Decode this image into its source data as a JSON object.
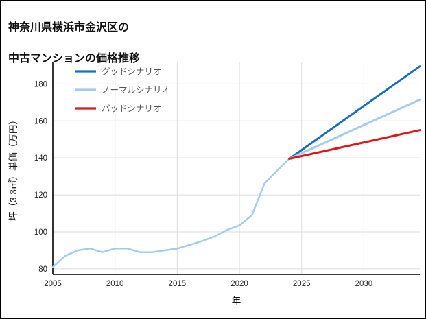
{
  "page": {
    "title_line1": "神奈川県横浜市金沢区の",
    "title_line2": "中古マンションの価格推移"
  },
  "chart_data": {
    "type": "line",
    "title": "神奈川県横浜市金沢区の中古マンションの価格推移",
    "xlabel": "年",
    "ylabel": "坪（3.3㎡）単価（万円）",
    "xlim": [
      2005,
      2034.5
    ],
    "ylim": [
      77,
      192
    ],
    "xticks": [
      2005,
      2010,
      2015,
      2020,
      2025,
      2030
    ],
    "yticks": [
      80,
      100,
      120,
      140,
      160,
      180
    ],
    "grid": true,
    "legend_position": "upper-left",
    "colors": {
      "grid": "#dcdcdc",
      "axis": "#000000",
      "good": "#1a6fc0",
      "normal": "#a4cbed",
      "bad": "#e01717",
      "history": "#a4cbed",
      "legend_text": "#555555",
      "tick_text": "#222222"
    },
    "series": [
      {
        "key": "history",
        "label": "",
        "color": "#a4cbed",
        "width": 2.5,
        "in_legend": false,
        "x": [
          2005,
          2006,
          2007,
          2008,
          2009,
          2010,
          2011,
          2012,
          2013,
          2014,
          2015,
          2016,
          2017,
          2018,
          2019,
          2020,
          2021,
          2022,
          2023,
          2024
        ],
        "y": [
          81,
          87,
          90,
          91,
          89,
          91,
          91,
          89,
          89,
          90,
          91,
          93,
          95,
          97.5,
          101,
          103.5,
          109,
          126,
          133,
          139.5
        ]
      },
      {
        "key": "good",
        "label": "グッドシナリオ",
        "color": "#1a6fc0",
        "width": 3,
        "in_legend": true,
        "x": [
          2024,
          2034.5
        ],
        "y": [
          139.5,
          189.5
        ]
      },
      {
        "key": "normal",
        "label": "ノーマルシナリオ",
        "color": "#a4cbed",
        "width": 3,
        "in_legend": true,
        "x": [
          2024,
          2034.5
        ],
        "y": [
          139.5,
          171.5
        ]
      },
      {
        "key": "bad",
        "label": "バッドシナリオ",
        "color": "#e01717",
        "width": 3,
        "in_legend": true,
        "x": [
          2024,
          2034.5
        ],
        "y": [
          139.5,
          155
        ]
      }
    ]
  }
}
